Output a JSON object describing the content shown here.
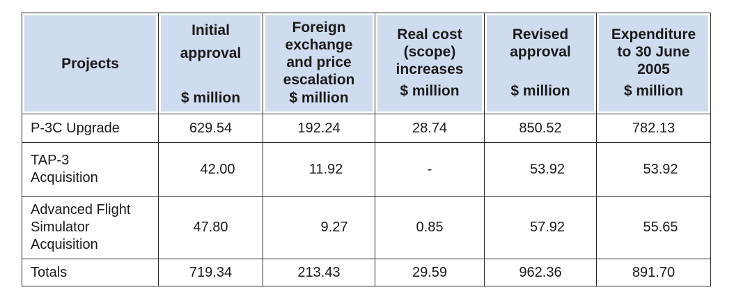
{
  "table": {
    "headers": [
      {
        "title": "Projects",
        "unit": ""
      },
      {
        "title": "Initial approval",
        "unit": "$ million"
      },
      {
        "title": "Foreign exchange and price escalation",
        "unit": "$ million"
      },
      {
        "title": "Real cost (scope) increases",
        "unit": "$ million"
      },
      {
        "title": "Revised approval",
        "unit": "$ million"
      },
      {
        "title": "Expenditure to 30 June 2005",
        "unit": "$ million"
      }
    ],
    "header_lines": {
      "h1": [
        "Initial",
        "approval"
      ],
      "h2": [
        "Foreign",
        "exchange",
        "and price",
        "escalation"
      ],
      "h3": [
        "Real cost",
        "(scope)",
        "increases"
      ],
      "h4": [
        "Revised",
        "approval"
      ],
      "h5": [
        "Expenditure",
        "to 30 June",
        "2005"
      ]
    },
    "rows": [
      {
        "name_lines": [
          "P-3C Upgrade"
        ],
        "cells": [
          "629.54",
          "192.24",
          "28.74",
          "850.52",
          "782.13"
        ]
      },
      {
        "name_lines": [
          "TAP-3",
          "Acquisition"
        ],
        "cells": [
          "42.00",
          "11.92",
          "-",
          "53.92",
          "53.92"
        ]
      },
      {
        "name_lines": [
          "Advanced Flight",
          "Simulator",
          "Acquisition"
        ],
        "cells": [
          "47.80",
          "9.27",
          "0.85",
          "57.92",
          "55.65"
        ]
      },
      {
        "name_lines": [
          "Totals"
        ],
        "cells": [
          "719.34",
          "213.43",
          "29.59",
          "962.36",
          "891.70"
        ]
      }
    ]
  },
  "colors": {
    "header_bg": "#cfdcef",
    "border": "#2a2a2a"
  }
}
